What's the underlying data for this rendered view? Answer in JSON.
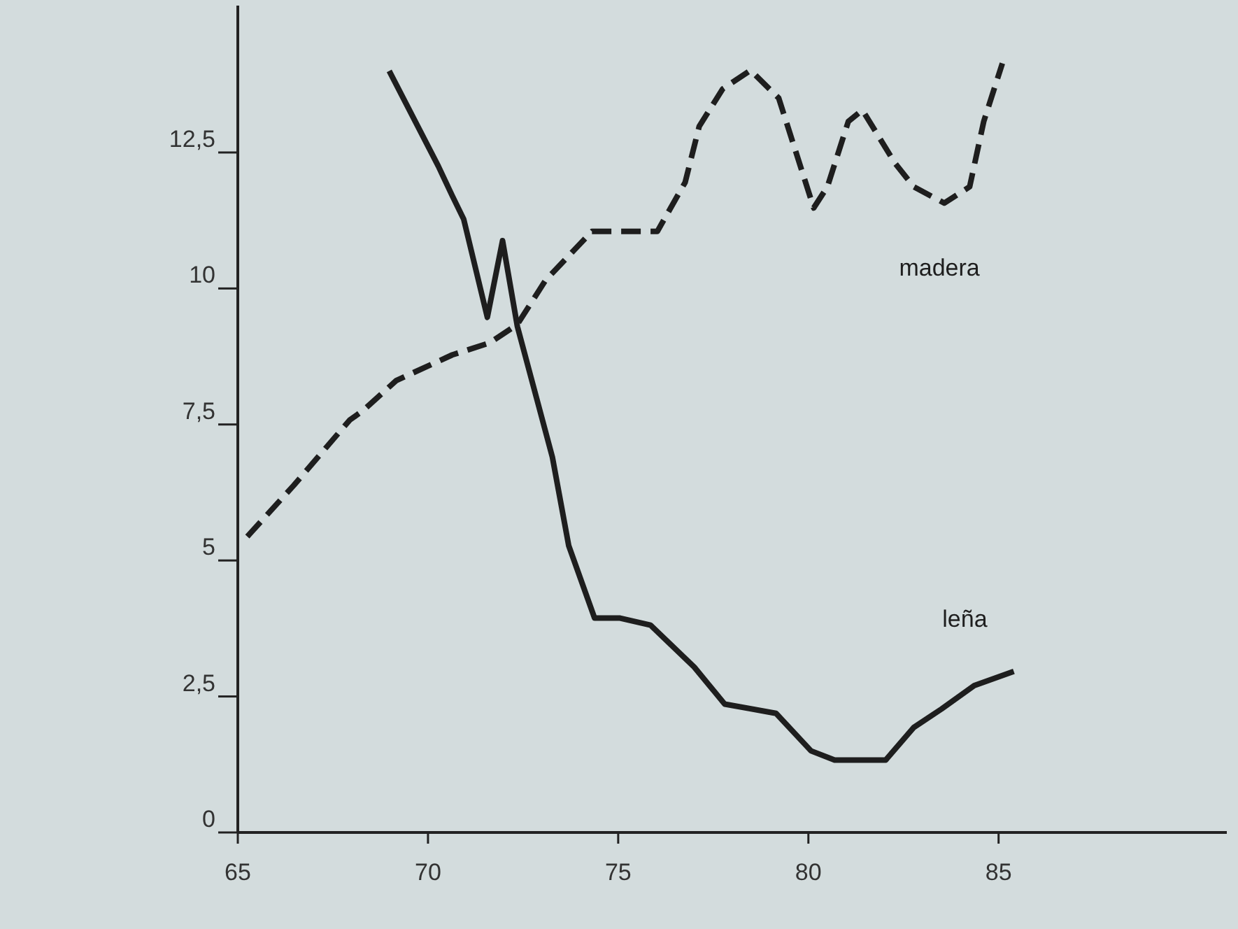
{
  "chart_data": {
    "type": "line",
    "xlim": [
      65,
      91
    ],
    "xticks": [
      65,
      70,
      75,
      80,
      85
    ],
    "ylim": [
      0,
      15.2
    ],
    "yticks": [
      0,
      {
        "value": 2.5,
        "label": "2,5"
      },
      5,
      {
        "value": 7.5,
        "label": "7,5"
      },
      10,
      {
        "value": 12.5,
        "label": "12,5"
      }
    ],
    "grid": false,
    "legend": false,
    "marker": "none",
    "series": [
      {
        "name": "madera",
        "color": "#1e1e1e",
        "line_style": "dashed",
        "x": [
          65.25,
          66.47,
          67.94,
          68.3,
          69.17,
          70.64,
          71.62,
          72.35,
          73.09,
          74.31,
          76.03,
          76.76,
          77.13,
          77.75,
          78.48,
          79.22,
          80.14,
          80.5,
          81.05,
          81.42,
          82.28,
          82.77,
          83.57,
          84.24,
          84.61,
          85.1
        ],
        "values": [
          5.44,
          6.38,
          7.58,
          7.76,
          8.31,
          8.78,
          9.0,
          9.34,
          10.15,
          11.05,
          11.05,
          11.95,
          12.98,
          13.67,
          14.01,
          13.5,
          11.48,
          11.87,
          13.07,
          13.28,
          12.3,
          11.87,
          11.57,
          11.87,
          13.07,
          14.14
        ]
      },
      {
        "name": "leña",
        "color": "#1e1e1e",
        "line_style": "solid",
        "x": [
          68.98,
          70.27,
          70.64,
          70.94,
          71.56,
          71.96,
          72.35,
          73.27,
          73.7,
          74.38,
          75.05,
          75.85,
          77.0,
          77.8,
          79.15,
          80.07,
          80.69,
          82.03,
          82.77,
          83.5,
          84.36,
          85.4
        ],
        "values": [
          14.0,
          12.25,
          11.7,
          11.27,
          9.47,
          10.88,
          9.3,
          6.9,
          5.27,
          3.94,
          3.94,
          3.81,
          3.04,
          2.36,
          2.19,
          1.5,
          1.33,
          1.33,
          1.93,
          2.27,
          2.7,
          2.96
        ]
      }
    ]
  }
}
